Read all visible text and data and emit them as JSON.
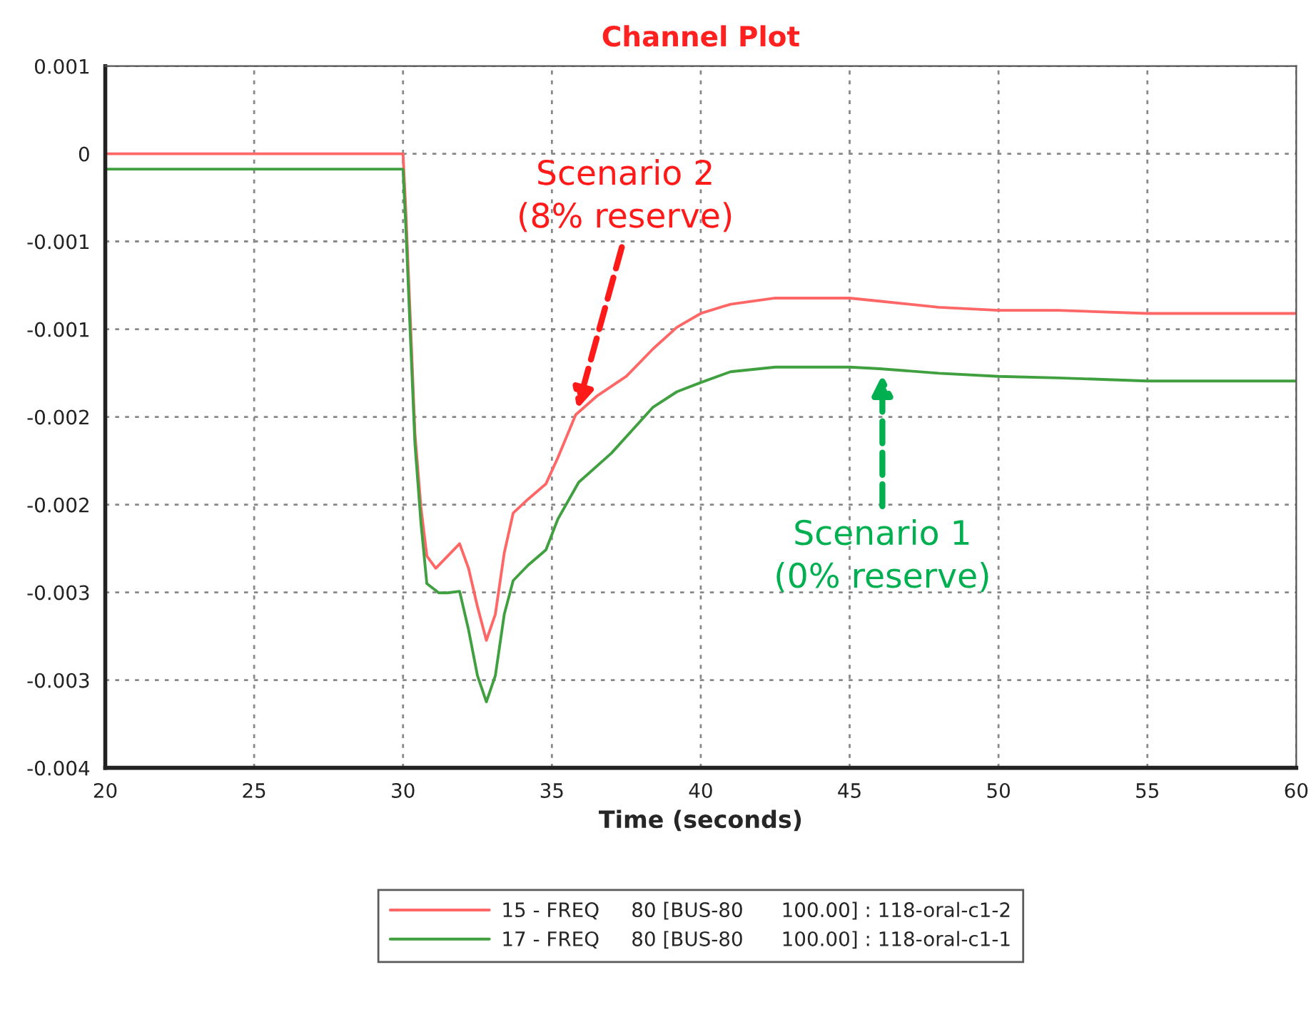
{
  "chart_data": {
    "type": "line",
    "title": "Channel Plot",
    "xlabel": "Time (seconds)",
    "xlim": [
      20,
      60
    ],
    "xticks": [
      20,
      25,
      30,
      35,
      40,
      45,
      50,
      55,
      60
    ],
    "ylim": [
      -0.004,
      0.000571
    ],
    "yticks": [
      {
        "value": 0.000571,
        "label": "0.001"
      },
      {
        "value": 0,
        "label": "0"
      },
      {
        "value": -0.000571,
        "label": "-0.001"
      },
      {
        "value": -0.001143,
        "label": "-0.001"
      },
      {
        "value": -0.001714,
        "label": "-0.002"
      },
      {
        "value": -0.002286,
        "label": "-0.002"
      },
      {
        "value": -0.002857,
        "label": "-0.003"
      },
      {
        "value": -0.003429,
        "label": "-0.003"
      },
      {
        "value": -0.004,
        "label": "-0.004"
      }
    ],
    "grid": true,
    "legend": "bottom",
    "line_style": "solid",
    "marker": "none",
    "series": [
      {
        "name": "15 - FREQ     80 [BUS-80      100.00] : 118-oral-c1-2",
        "color": "#ff6666",
        "x": [
          20,
          30,
          30.1,
          30.25,
          30.4,
          30.6,
          30.8,
          31.1,
          31.5,
          31.9,
          32.2,
          32.5,
          32.8,
          33.1,
          33.4,
          33.7,
          34.2,
          34.8,
          35.2,
          35.8,
          36.5,
          37.5,
          38.4,
          39.2,
          40,
          41,
          42.5,
          44,
          45,
          46,
          48,
          50,
          52,
          55,
          60
        ],
        "values": [
          0,
          0,
          -0.0004,
          -0.0011,
          -0.00182,
          -0.0023,
          -0.00262,
          -0.0027,
          -0.00262,
          -0.00254,
          -0.0027,
          -0.00295,
          -0.00317,
          -0.003,
          -0.0026,
          -0.00234,
          -0.00225,
          -0.00215,
          -0.00198,
          -0.0017,
          -0.00158,
          -0.00145,
          -0.00127,
          -0.00113,
          -0.00104,
          -0.00098,
          -0.00094,
          -0.00094,
          -0.00094,
          -0.00096,
          -0.001,
          -0.00102,
          -0.00102,
          -0.00104,
          -0.00104
        ]
      },
      {
        "name": "17 - FREQ     80 [BUS-80      100.00] : 118-oral-c1-1",
        "color": "#40a040",
        "x": [
          20,
          30,
          30.1,
          30.25,
          30.4,
          30.6,
          30.8,
          31.2,
          31.5,
          31.9,
          32.2,
          32.5,
          32.8,
          33.1,
          33.4,
          33.7,
          34.2,
          34.8,
          35.2,
          35.9,
          37,
          38.4,
          39.2,
          40,
          41,
          42.5,
          44,
          45,
          46,
          48,
          50,
          52,
          55,
          60
        ],
        "values": [
          -0.0001,
          -0.0001,
          -0.0005,
          -0.0012,
          -0.00189,
          -0.0024,
          -0.0028,
          -0.00286,
          -0.00286,
          -0.00285,
          -0.0031,
          -0.0034,
          -0.00357,
          -0.0034,
          -0.003,
          -0.00278,
          -0.00268,
          -0.00258,
          -0.00238,
          -0.00214,
          -0.00195,
          -0.00165,
          -0.00155,
          -0.00149,
          -0.00142,
          -0.00139,
          -0.00139,
          -0.00139,
          -0.0014,
          -0.00143,
          -0.00145,
          -0.00146,
          -0.00148,
          -0.00148
        ]
      }
    ],
    "annotations": [
      {
        "text": "Scenario 2\n(8% reserve)",
        "x": 35.8,
        "y": -0.0017
      },
      {
        "text": "Scenario 1\n(0% reserve)",
        "x": 46.1,
        "y": -0.0014
      }
    ]
  }
}
